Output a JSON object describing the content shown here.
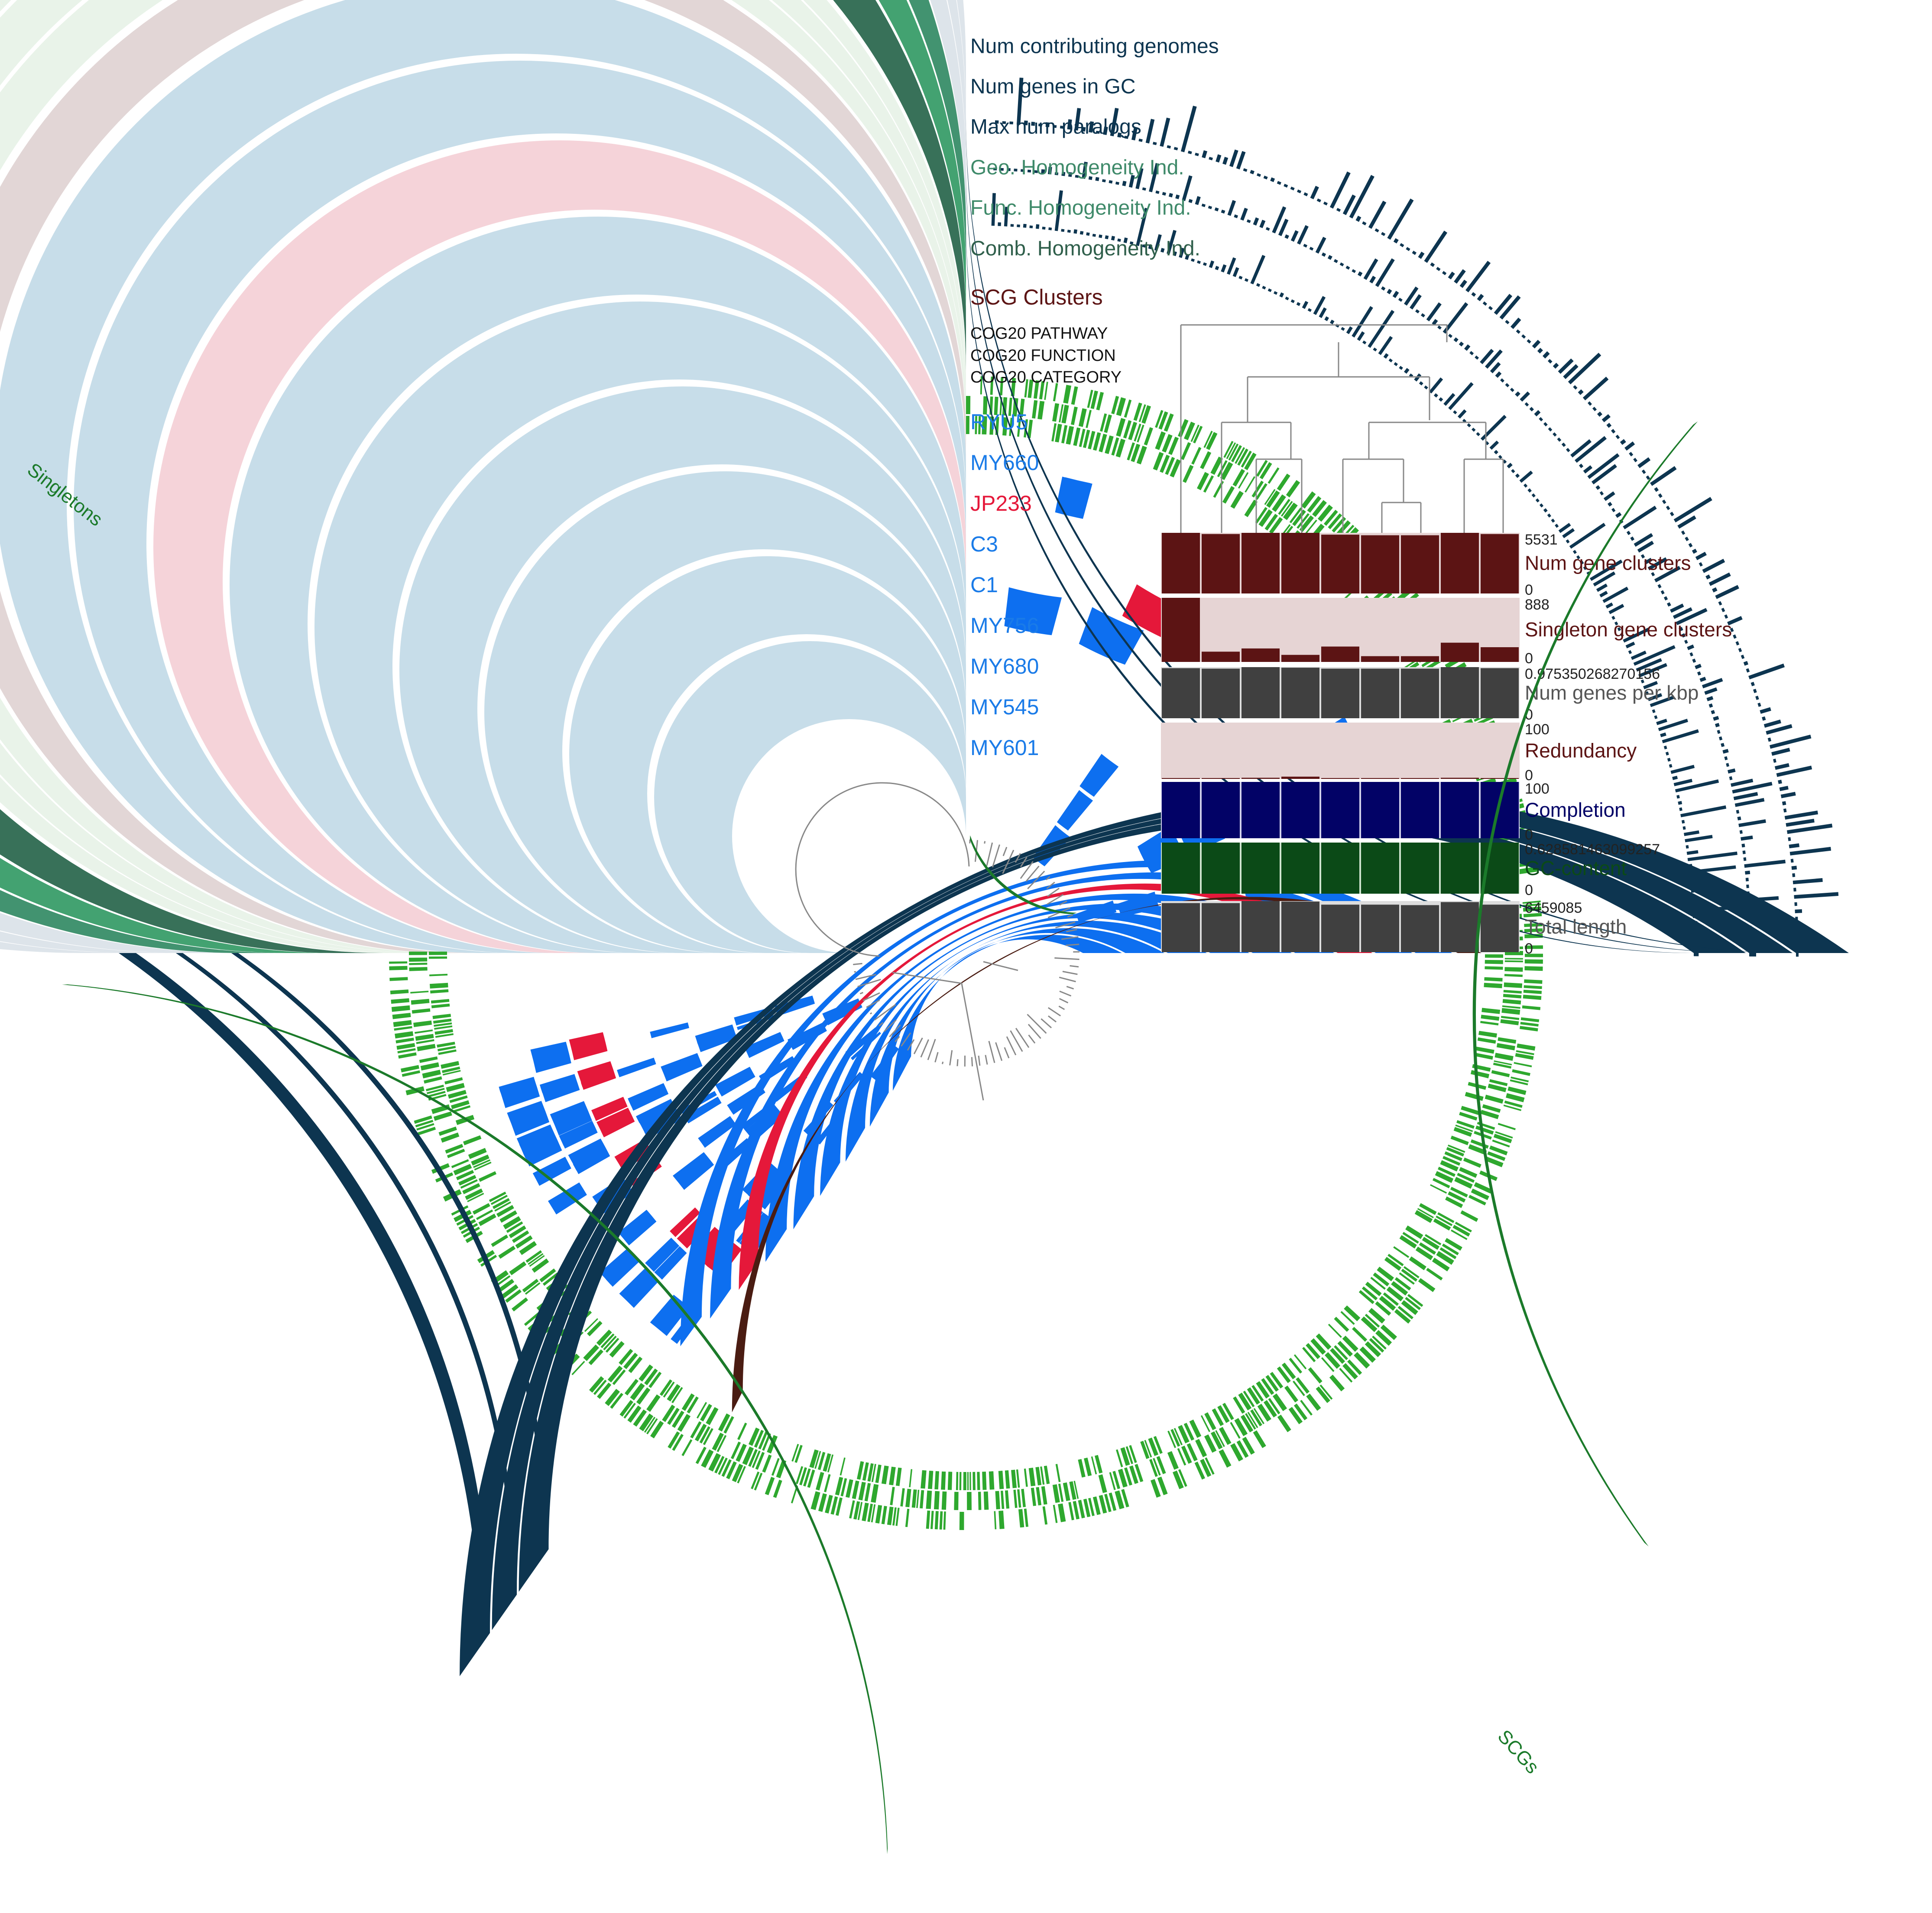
{
  "ring_labels": [
    {
      "text": "Num contributing genomes",
      "color": "#0d3550"
    },
    {
      "text": "Num genes in GC",
      "color": "#0d3550"
    },
    {
      "text": "Max num paralogs",
      "color": "#0d3550"
    },
    {
      "text": "Geo. Homogeneity Ind.",
      "color": "#3f8a6a"
    },
    {
      "text": "Func. Homogeneity Ind.",
      "color": "#3f8a6a"
    },
    {
      "text": "Comb. Homogeneity Ind.",
      "color": "#2f5f4b"
    },
    {
      "text": "SCG Clusters",
      "color": "#5c1414"
    },
    {
      "text": "COG20 PATHWAY",
      "color": "#111111"
    },
    {
      "text": "COG20 FUNCTION",
      "color": "#111111"
    },
    {
      "text": "COG20 CATEGORY",
      "color": "#111111"
    }
  ],
  "genome_labels": [
    {
      "text": "RYU5",
      "color": "#1a7be8"
    },
    {
      "text": "MY660",
      "color": "#1a7be8"
    },
    {
      "text": "JP233",
      "color": "#e5183a"
    },
    {
      "text": "C3",
      "color": "#1a7be8"
    },
    {
      "text": "C1",
      "color": "#1a7be8"
    },
    {
      "text": "MY756",
      "color": "#1a7be8"
    },
    {
      "text": "MY680",
      "color": "#1a7be8"
    },
    {
      "text": "MY545",
      "color": "#1a7be8"
    },
    {
      "text": "MY601",
      "color": "#1a7be8"
    }
  ],
  "bin_labels": {
    "singletons": "Singletons",
    "scgs": "SCGs"
  },
  "bar_layers": [
    {
      "name": "Num gene clusters",
      "max": "5531",
      "min": "0",
      "color": "#5c1414",
      "bg": "#e6d4d4",
      "values": [
        1.0,
        0.98,
        1.0,
        1.0,
        0.97,
        0.96,
        0.96,
        1.0,
        0.98
      ]
    },
    {
      "name": "Singleton gene clusters",
      "max": "888",
      "min": "0",
      "color": "#5c1414",
      "bg": "#e6d4d4",
      "values": [
        1.0,
        0.16,
        0.21,
        0.11,
        0.24,
        0.09,
        0.09,
        0.3,
        0.23
      ]
    },
    {
      "name": "Num genes per kbp",
      "max": "0.975350268270156",
      "min": "0",
      "color": "#404040",
      "bg": "#dddddd",
      "values": [
        0.98,
        0.97,
        1.0,
        0.99,
        0.97,
        0.97,
        0.97,
        1.0,
        0.98
      ]
    },
    {
      "name": "Redundancy",
      "max": "100",
      "min": "0",
      "color": "#5c1414",
      "bg": "#e6d4d4",
      "values": [
        0.0,
        0.0,
        0.02,
        0.04,
        0.0,
        0.0,
        0.0,
        0.02,
        0.0
      ]
    },
    {
      "name": "Completion",
      "max": "100",
      "min": "0",
      "color": "#020266",
      "bg": "#d0d0ea",
      "values": [
        1.0,
        1.0,
        1.0,
        1.0,
        1.0,
        1.0,
        1.0,
        1.0,
        1.0
      ]
    },
    {
      "name": "GC-content",
      "max": "0.628581463099257",
      "min": "0",
      "color": "#0b4a17",
      "bg": "#cfe3cf",
      "values": [
        1.0,
        1.0,
        1.0,
        1.0,
        1.0,
        1.0,
        1.0,
        1.0,
        1.0
      ]
    },
    {
      "name": "Total length",
      "max": "6459085",
      "min": "0",
      "color": "#404040",
      "bg": "#dddddd",
      "values": [
        0.96,
        0.96,
        1.0,
        0.99,
        0.93,
        0.93,
        0.92,
        0.98,
        0.93
      ]
    }
  ],
  "colors": {
    "genome_bg": "#c7dde9",
    "genome_bg_light": "#d6e6f5",
    "genome_fill": "#1a7be8",
    "genome_fill_bright": "#0d6ff0",
    "jp_bg": "#f5d3d9",
    "jp_fill": "#e5183a",
    "scg_bg": "#e2d6d6",
    "scg_fill": "#4a1c12",
    "cog_green": "#2ea82e",
    "cog_bg": "#e9f3e9",
    "navy": "#0d3550",
    "navy_bg": "#dde4ea",
    "green1": "#3a8e6a",
    "green1_bg": "#cbe0d6",
    "green2": "#3b9e6c",
    "green3": "#2f6a52",
    "bin_green": "#1b7a2a",
    "tree": "#888888"
  }
}
